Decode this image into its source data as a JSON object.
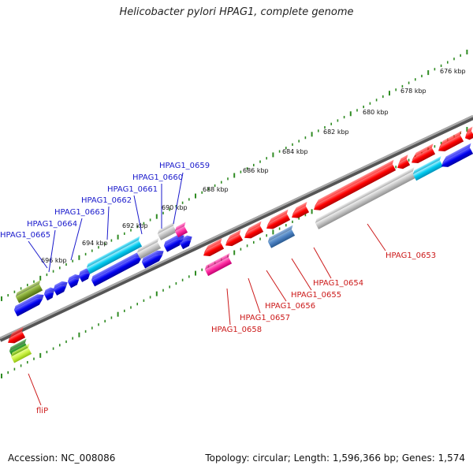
{
  "title": "Helicobacter pylori HPAG1, complete genome",
  "footer": {
    "accession": "Accession: NC_008086",
    "summary": "Topology: circular; Length: 1,596,366 bp; Genes: 1,574"
  },
  "colors": {
    "backbone": "#808080",
    "tick": "#2e8b22",
    "top_label": "#1a1acc",
    "bottom_label": "#cc1a1a"
  },
  "ticks": [
    "676 kbp",
    "678 kbp",
    "680 kbp",
    "682 kbp",
    "684 kbp",
    "686 kbp",
    "688 kbp",
    "690 kbp",
    "692 kbp",
    "694 kbp",
    "696 kbp"
  ],
  "top_labels": [
    "HPAG1_0659",
    "HPAG1_0660",
    "HPAG1_0661",
    "HPAG1_0662",
    "HPAG1_0663",
    "HPAG1_0664",
    "HPAG1_0665"
  ],
  "bottom_labels": [
    "HPAG1_0653",
    "HPAG1_0654",
    "HPAG1_0655",
    "HPAG1_0656",
    "HPAG1_0657",
    "HPAG1_0658",
    "fliP"
  ]
}
